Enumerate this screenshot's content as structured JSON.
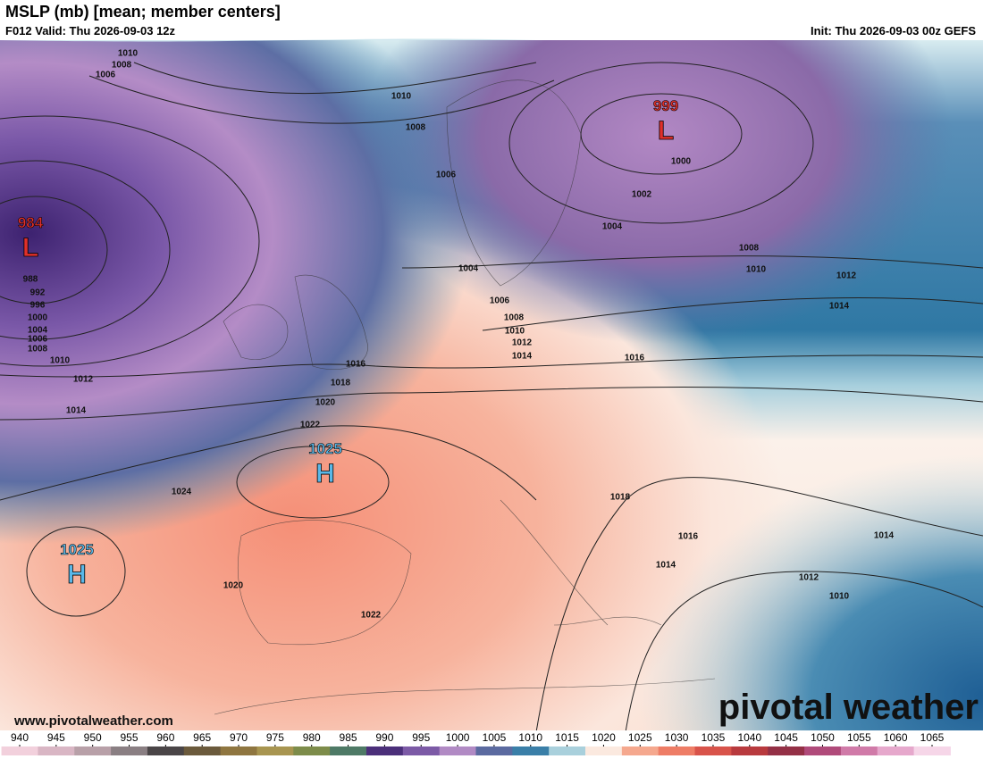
{
  "header": {
    "title": "MSLP (mb) [mean; member centers]",
    "valid": "F012 Valid: Thu 2026-09-03 12z",
    "init": "Init: Thu 2026-09-03 00z GEFS"
  },
  "map": {
    "centers": [
      {
        "letter": "L",
        "value": 984
      },
      {
        "letter": "L",
        "value": 999
      },
      {
        "letter": "H",
        "value": 1025
      },
      {
        "letter": "H",
        "value": 1025
      }
    ],
    "isobar_labels": [
      1010,
      1008,
      1006,
      1010,
      1008,
      1006,
      1004,
      1004,
      1002,
      1000,
      1008,
      1010,
      1012,
      1014,
      1016,
      988,
      992,
      996,
      1000,
      1004,
      1006,
      1008,
      1010,
      1012,
      1014,
      1016,
      1018,
      1020,
      1022,
      1024,
      1020,
      1022,
      1006,
      1008,
      1010,
      1012,
      1014,
      1018,
      1016,
      1014,
      1014,
      1012,
      1010
    ]
  },
  "footer": {
    "url": "www.pivotalweather.com",
    "logo": "pivotal weather"
  },
  "colorbar": {
    "ticks": [
      940,
      945,
      950,
      955,
      960,
      965,
      970,
      975,
      980,
      985,
      990,
      995,
      1000,
      1005,
      1010,
      1015,
      1020,
      1025,
      1030,
      1035,
      1040,
      1045,
      1050,
      1055,
      1060,
      1065
    ],
    "colors": [
      "#f2d0dc",
      "#d9b6c4",
      "#b8a0a8",
      "#8a7f83",
      "#4a4547",
      "#6b5a3c",
      "#8f7640",
      "#a89550",
      "#7d8c4a",
      "#4e7a66",
      "#4b2f7a",
      "#7c5aa6",
      "#b18ac4",
      "#5b6aa0",
      "#3a7fa8",
      "#a9d0dc",
      "#fbe9df",
      "#f5a88e",
      "#ee7d66",
      "#d8534a",
      "#b83a3e",
      "#943046",
      "#b04a7a",
      "#d07aa8",
      "#e6a8cc",
      "#f6d6e8"
    ]
  }
}
